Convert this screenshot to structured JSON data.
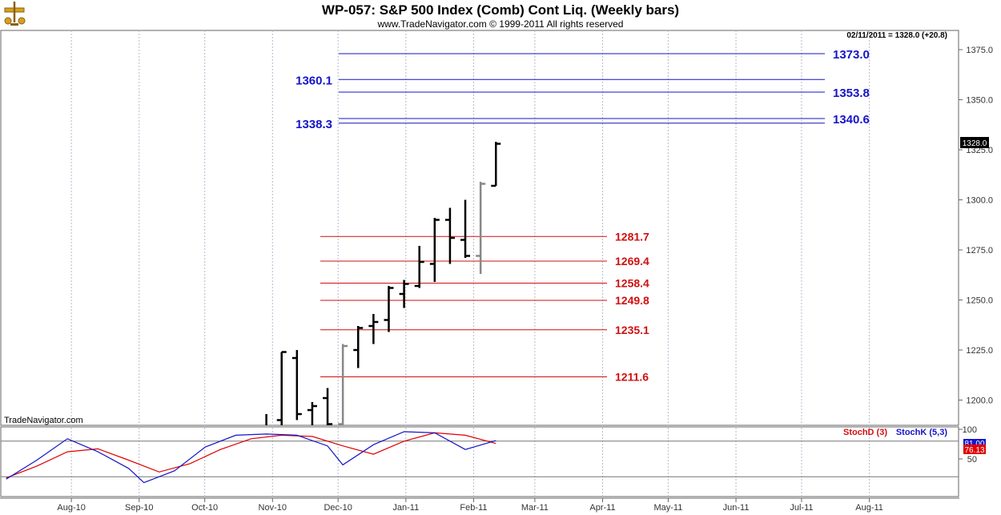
{
  "header": {
    "title": "WP-057:  S&P 500 Index (Comb) Cont Liq.  (Weekly bars)",
    "subtitle": "www.TradeNavigator.com © 1999-2011 All rights reserved",
    "status": "02/11/2011 = 1328.0 (+20.8)",
    "credit": "TradeNavigator.com"
  },
  "icons": {
    "logo": "scales-logo-icon"
  },
  "colors": {
    "bar_up": "#000000",
    "bar_gray": "#888888",
    "level_blue": "#1515c8",
    "level_red": "#d01010",
    "stochD": "#e00000",
    "stochK": "#1515c8",
    "grid": "#b8b8d0",
    "last_badge": "#000000"
  },
  "chart_data": [
    {
      "type": "bar",
      "subtype": "ohlc",
      "title": "WP-057:  S&P 500 Index (Comb) Cont Liq.  (Weekly bars)",
      "x_ticks": [
        "Aug-10",
        "Sep-10",
        "Oct-10",
        "Nov-10",
        "Dec-10",
        "Jan-11",
        "Feb-11",
        "Mar-11",
        "Apr-11",
        "May-11",
        "Jun-11",
        "Jul-11",
        "Aug-11"
      ],
      "y_ticks": [
        "1200.0",
        "1225.0",
        "1250.0",
        "1275.0",
        "1300.0",
        "1325.0",
        "1350.0",
        "1375.0"
      ],
      "ylim": [
        1189,
        1386
      ],
      "grid": "vertical",
      "last_value": "1328.0",
      "bars": [
        {
          "date": "2010-10-29",
          "open": 1183,
          "high": 1193,
          "low": 1176,
          "close": 1183,
          "color": "black"
        },
        {
          "date": "2010-11-05",
          "open": 1190,
          "high": 1224,
          "low": 1186,
          "close": 1224,
          "color": "black"
        },
        {
          "date": "2010-11-12",
          "open": 1221,
          "high": 1225,
          "low": 1190,
          "close": 1193,
          "color": "black"
        },
        {
          "date": "2010-11-19",
          "open": 1195,
          "high": 1199,
          "low": 1178,
          "close": 1197,
          "color": "black"
        },
        {
          "date": "2010-11-26",
          "open": 1201,
          "high": 1206,
          "low": 1186,
          "close": 1188,
          "color": "black"
        },
        {
          "date": "2010-12-03",
          "open": 1188,
          "high": 1228,
          "low": 1185,
          "close": 1227,
          "color": "gray"
        },
        {
          "date": "2010-12-10",
          "open": 1225,
          "high": 1237,
          "low": 1216,
          "close": 1236,
          "color": "black"
        },
        {
          "date": "2010-12-17",
          "open": 1237,
          "high": 1243,
          "low": 1228,
          "close": 1239,
          "color": "black"
        },
        {
          "date": "2010-12-24",
          "open": 1240,
          "high": 1257,
          "low": 1234,
          "close": 1256,
          "color": "black"
        },
        {
          "date": "2010-12-31",
          "open": 1253,
          "high": 1260,
          "low": 1246,
          "close": 1258,
          "color": "black"
        },
        {
          "date": "2011-01-07",
          "open": 1257,
          "high": 1277,
          "low": 1256,
          "close": 1269,
          "color": "black"
        },
        {
          "date": "2011-01-14",
          "open": 1268,
          "high": 1291,
          "low": 1259,
          "close": 1290,
          "color": "black"
        },
        {
          "date": "2011-01-21",
          "open": 1290,
          "high": 1296,
          "low": 1268,
          "close": 1281,
          "color": "black"
        },
        {
          "date": "2011-01-28",
          "open": 1280,
          "high": 1300,
          "low": 1271,
          "close": 1272,
          "color": "black"
        },
        {
          "date": "2011-02-04",
          "open": 1272,
          "high": 1309,
          "low": 1263,
          "close": 1308,
          "color": "gray"
        },
        {
          "date": "2011-02-11",
          "open": 1307,
          "high": 1329,
          "low": 1307,
          "close": 1328,
          "color": "black"
        }
      ],
      "levels_blue": [
        {
          "value": 1373.0,
          "label": "1373.0",
          "label_side": "right"
        },
        {
          "value": 1360.1,
          "label": "1360.1",
          "label_side": "left"
        },
        {
          "value": 1353.8,
          "label": "1353.8",
          "label_side": "right"
        },
        {
          "value": 1340.6,
          "label": "1340.6",
          "label_side": "right"
        },
        {
          "value": 1338.3,
          "label": "1338.3",
          "label_side": "left"
        }
      ],
      "levels_red": [
        {
          "value": 1281.7,
          "label": "1281.7"
        },
        {
          "value": 1269.4,
          "label": "1269.4"
        },
        {
          "value": 1258.4,
          "label": "1258.4"
        },
        {
          "value": 1249.8,
          "label": "1249.8"
        },
        {
          "value": 1235.1,
          "label": "1235.1"
        },
        {
          "value": 1211.6,
          "label": "1211.6"
        }
      ]
    },
    {
      "type": "line",
      "title": "",
      "y_ticks": [
        "100",
        "50"
      ],
      "ylim": [
        0,
        100
      ],
      "reference_levels": [
        80,
        20
      ],
      "readouts": [
        "81.00",
        "76.13"
      ],
      "legend": [
        "StochD (3)",
        "StochK (5,3)"
      ],
      "series": [
        {
          "name": "StochD (3)",
          "color": "#e00000",
          "points": [
            [
              "2010-07-02",
              18
            ],
            [
              "2010-07-16",
              38
            ],
            [
              "2010-07-30",
              62
            ],
            [
              "2010-08-13",
              67
            ],
            [
              "2010-08-27",
              48
            ],
            [
              "2010-09-10",
              28
            ],
            [
              "2010-09-24",
              42
            ],
            [
              "2010-10-08",
              66
            ],
            [
              "2010-10-22",
              84
            ],
            [
              "2010-11-05",
              90
            ],
            [
              "2010-11-19",
              88
            ],
            [
              "2010-12-03",
              72
            ],
            [
              "2010-12-17",
              58
            ],
            [
              "2010-12-31",
              80
            ],
            [
              "2011-01-14",
              94
            ],
            [
              "2011-01-28",
              90
            ],
            [
              "2011-02-11",
              76.13
            ]
          ]
        },
        {
          "name": "StochK (5,3)",
          "color": "#1515c8",
          "points": [
            [
              "2010-07-02",
              16
            ],
            [
              "2010-07-16",
              48
            ],
            [
              "2010-07-30",
              84
            ],
            [
              "2010-08-13",
              62
            ],
            [
              "2010-08-27",
              34
            ],
            [
              "2010-09-03",
              10
            ],
            [
              "2010-09-17",
              30
            ],
            [
              "2010-10-01",
              70
            ],
            [
              "2010-10-15",
              90
            ],
            [
              "2010-10-29",
              92
            ],
            [
              "2010-11-12",
              90
            ],
            [
              "2010-11-26",
              72
            ],
            [
              "2010-12-03",
              40
            ],
            [
              "2010-12-17",
              74
            ],
            [
              "2010-12-31",
              96
            ],
            [
              "2011-01-14",
              94
            ],
            [
              "2011-01-28",
              66
            ],
            [
              "2011-02-11",
              81
            ]
          ]
        }
      ]
    }
  ]
}
